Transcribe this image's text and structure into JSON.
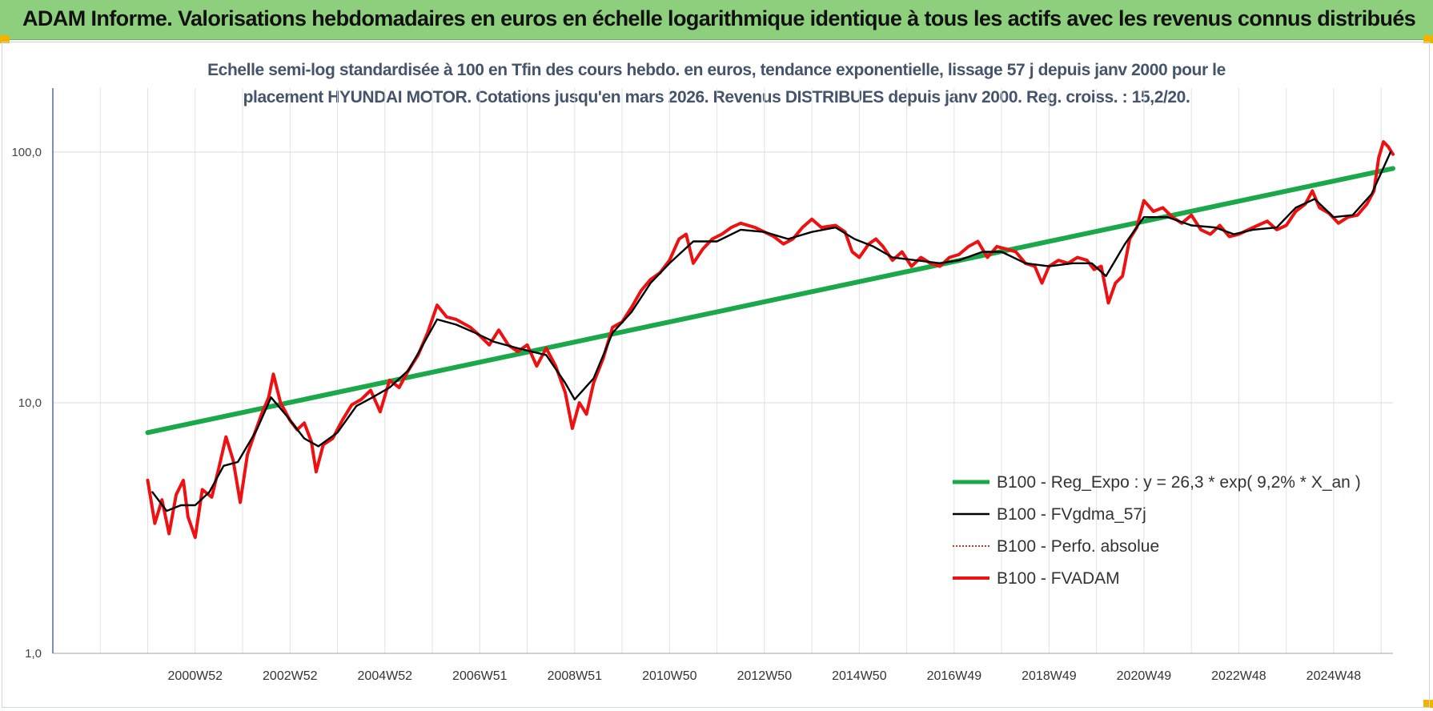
{
  "banner": {
    "title": "ADAM Informe. Valorisations hebdomadaires en euros en échelle logarithmique identique à tous les actifs avec les revenus connus distribués"
  },
  "colors": {
    "banner": "#8dcf7c",
    "regression": "#1aa84a",
    "smoothed": "#000000",
    "absolute": "#c0392b",
    "fvadam": "#ee1111"
  },
  "chart_data": {
    "type": "line",
    "title_line1": "Echelle semi-log standardisée à 100 en Tfin des cours hebdo. en euros, tendance exponentielle, lissage 57 j depuis janv 2000 pour le",
    "title_line2": "placement HYUNDAI MOTOR. Cotations jusqu'en mars 2026. Revenus DISTRIBUES depuis janv 2000. Reg. croiss. : 15,2/20.",
    "y_scale": "log",
    "ylim": [
      1,
      180
    ],
    "xlim": [
      1998.0,
      2026.25
    ],
    "y_ticks": [
      1,
      10,
      100
    ],
    "y_tick_labels": [
      "1,0",
      "10,0",
      "100,0"
    ],
    "x_tick_labels": [
      "2000W52",
      "2002W52",
      "2004W52",
      "2006W51",
      "2008W51",
      "2010W50",
      "2012W50",
      "2014W50",
      "2016W49",
      "2018W49",
      "2020W49",
      "2022W48",
      "2024W48"
    ],
    "x_tick_positions": [
      2001.0,
      2003.0,
      2005.0,
      2007.0,
      2009.0,
      2011.0,
      2013.0,
      2015.0,
      2017.0,
      2019.0,
      2021.0,
      2023.0,
      2025.0
    ],
    "grid": true,
    "legend_position": "bottom-right",
    "series": [
      {
        "name": "B100 - Reg_Expo : y = 26,3 * exp( 9,2% *  X_an )",
        "style": "solid-thick",
        "points": [
          [
            2000.0,
            7.6
          ],
          [
            2026.25,
            86.0
          ]
        ]
      },
      {
        "name": "B100 - FVgdma_57j",
        "style": "solid-thin",
        "points": [
          [
            2000.1,
            4.4
          ],
          [
            2000.4,
            3.7
          ],
          [
            2000.7,
            3.9
          ],
          [
            2001.0,
            3.9
          ],
          [
            2001.3,
            4.4
          ],
          [
            2001.6,
            5.6
          ],
          [
            2001.9,
            5.8
          ],
          [
            2002.3,
            7.8
          ],
          [
            2002.6,
            10.5
          ],
          [
            2002.9,
            9.0
          ],
          [
            2003.3,
            7.2
          ],
          [
            2003.6,
            6.7
          ],
          [
            2004.0,
            7.6
          ],
          [
            2004.4,
            9.7
          ],
          [
            2004.7,
            10.4
          ],
          [
            2005.1,
            11.5
          ],
          [
            2005.5,
            13.5
          ],
          [
            2005.8,
            17.0
          ],
          [
            2006.1,
            21.5
          ],
          [
            2006.5,
            20.5
          ],
          [
            2006.9,
            19.0
          ],
          [
            2007.3,
            17.5
          ],
          [
            2007.8,
            16.5
          ],
          [
            2008.4,
            15.5
          ],
          [
            2008.8,
            12.0
          ],
          [
            2009.0,
            10.3
          ],
          [
            2009.4,
            12.5
          ],
          [
            2009.8,
            19.0
          ],
          [
            2010.2,
            23.0
          ],
          [
            2010.6,
            30.0
          ],
          [
            2011.0,
            36.0
          ],
          [
            2011.5,
            44.0
          ],
          [
            2012.0,
            44.0
          ],
          [
            2012.5,
            49.0
          ],
          [
            2013.0,
            48.0
          ],
          [
            2013.5,
            45.0
          ],
          [
            2014.0,
            48.0
          ],
          [
            2014.5,
            50.0
          ],
          [
            2014.9,
            45.0
          ],
          [
            2015.3,
            42.0
          ],
          [
            2015.7,
            38.0
          ],
          [
            2016.2,
            37.0
          ],
          [
            2016.7,
            36.0
          ],
          [
            2017.1,
            37.0
          ],
          [
            2017.6,
            40.0
          ],
          [
            2018.0,
            40.0
          ],
          [
            2018.5,
            36.0
          ],
          [
            2019.0,
            35.0
          ],
          [
            2019.5,
            36.0
          ],
          [
            2019.9,
            36.0
          ],
          [
            2020.2,
            32.0
          ],
          [
            2020.6,
            43.0
          ],
          [
            2021.0,
            55.0
          ],
          [
            2021.5,
            55.0
          ],
          [
            2022.0,
            51.0
          ],
          [
            2022.5,
            50.0
          ],
          [
            2022.9,
            47.0
          ],
          [
            2023.3,
            49.0
          ],
          [
            2023.8,
            50.0
          ],
          [
            2024.2,
            60.0
          ],
          [
            2024.6,
            65.0
          ],
          [
            2025.0,
            55.0
          ],
          [
            2025.4,
            56.0
          ],
          [
            2025.8,
            68.0
          ],
          [
            2026.2,
            100.0
          ]
        ]
      },
      {
        "name": "B100 - Perfo. absolue",
        "style": "dotted"
      },
      {
        "name": "B100 - FVADAM",
        "style": "solid-thick",
        "points": [
          [
            2000.0,
            4.9
          ],
          [
            2000.15,
            3.3
          ],
          [
            2000.3,
            4.1
          ],
          [
            2000.45,
            3.0
          ],
          [
            2000.6,
            4.3
          ],
          [
            2000.75,
            4.9
          ],
          [
            2000.85,
            3.5
          ],
          [
            2001.0,
            2.9
          ],
          [
            2001.15,
            4.5
          ],
          [
            2001.35,
            4.2
          ],
          [
            2001.5,
            5.5
          ],
          [
            2001.65,
            7.3
          ],
          [
            2001.8,
            5.9
          ],
          [
            2001.95,
            4.0
          ],
          [
            2002.1,
            6.2
          ],
          [
            2002.25,
            7.5
          ],
          [
            2002.4,
            9.0
          ],
          [
            2002.55,
            10.5
          ],
          [
            2002.65,
            13.0
          ],
          [
            2002.8,
            10.0
          ],
          [
            2003.0,
            8.5
          ],
          [
            2003.15,
            7.8
          ],
          [
            2003.3,
            8.3
          ],
          [
            2003.45,
            7.0
          ],
          [
            2003.55,
            5.3
          ],
          [
            2003.7,
            6.8
          ],
          [
            2003.9,
            7.2
          ],
          [
            2004.1,
            8.5
          ],
          [
            2004.3,
            9.8
          ],
          [
            2004.5,
            10.3
          ],
          [
            2004.7,
            11.2
          ],
          [
            2004.9,
            9.2
          ],
          [
            2005.1,
            12.3
          ],
          [
            2005.3,
            11.5
          ],
          [
            2005.5,
            13.5
          ],
          [
            2005.7,
            15.5
          ],
          [
            2005.9,
            19.0
          ],
          [
            2006.1,
            24.5
          ],
          [
            2006.3,
            22.0
          ],
          [
            2006.5,
            21.5
          ],
          [
            2006.8,
            20.0
          ],
          [
            2007.0,
            18.5
          ],
          [
            2007.2,
            17.0
          ],
          [
            2007.4,
            19.5
          ],
          [
            2007.6,
            17.0
          ],
          [
            2007.8,
            16.0
          ],
          [
            2008.0,
            17.0
          ],
          [
            2008.2,
            14.0
          ],
          [
            2008.4,
            16.5
          ],
          [
            2008.6,
            14.0
          ],
          [
            2008.8,
            11.0
          ],
          [
            2008.95,
            7.9
          ],
          [
            2009.1,
            10.0
          ],
          [
            2009.25,
            9.0
          ],
          [
            2009.4,
            12.0
          ],
          [
            2009.6,
            15.0
          ],
          [
            2009.8,
            20.0
          ],
          [
            2010.0,
            21.0
          ],
          [
            2010.2,
            24.0
          ],
          [
            2010.4,
            28.0
          ],
          [
            2010.6,
            31.0
          ],
          [
            2010.8,
            33.0
          ],
          [
            2011.0,
            37.0
          ],
          [
            2011.2,
            45.0
          ],
          [
            2011.35,
            47.0
          ],
          [
            2011.5,
            36.0
          ],
          [
            2011.7,
            41.0
          ],
          [
            2011.9,
            45.0
          ],
          [
            2012.1,
            47.0
          ],
          [
            2012.3,
            50.0
          ],
          [
            2012.5,
            52.0
          ],
          [
            2012.8,
            50.0
          ],
          [
            2013.0,
            48.0
          ],
          [
            2013.2,
            46.0
          ],
          [
            2013.4,
            43.0
          ],
          [
            2013.6,
            45.0
          ],
          [
            2013.8,
            50.0
          ],
          [
            2014.0,
            54.0
          ],
          [
            2014.2,
            50.0
          ],
          [
            2014.5,
            51.0
          ],
          [
            2014.7,
            48.0
          ],
          [
            2014.85,
            40.0
          ],
          [
            2015.0,
            38.0
          ],
          [
            2015.2,
            43.0
          ],
          [
            2015.35,
            45.0
          ],
          [
            2015.5,
            42.0
          ],
          [
            2015.7,
            37.0
          ],
          [
            2015.9,
            40.0
          ],
          [
            2016.1,
            35.0
          ],
          [
            2016.3,
            38.0
          ],
          [
            2016.5,
            36.0
          ],
          [
            2016.7,
            35.0
          ],
          [
            2016.9,
            38.0
          ],
          [
            2017.1,
            39.0
          ],
          [
            2017.3,
            42.0
          ],
          [
            2017.5,
            44.0
          ],
          [
            2017.7,
            38.0
          ],
          [
            2017.9,
            42.0
          ],
          [
            2018.1,
            41.0
          ],
          [
            2018.3,
            40.0
          ],
          [
            2018.5,
            36.0
          ],
          [
            2018.7,
            35.0
          ],
          [
            2018.85,
            30.0
          ],
          [
            2019.0,
            35.0
          ],
          [
            2019.2,
            37.0
          ],
          [
            2019.4,
            36.0
          ],
          [
            2019.6,
            38.0
          ],
          [
            2019.8,
            37.0
          ],
          [
            2019.95,
            34.0
          ],
          [
            2020.1,
            35.0
          ],
          [
            2020.25,
            25.0
          ],
          [
            2020.4,
            30.0
          ],
          [
            2020.55,
            32.0
          ],
          [
            2020.7,
            45.0
          ],
          [
            2020.85,
            50.0
          ],
          [
            2021.0,
            64.0
          ],
          [
            2021.2,
            58.0
          ],
          [
            2021.4,
            60.0
          ],
          [
            2021.6,
            55.0
          ],
          [
            2021.8,
            52.0
          ],
          [
            2022.0,
            56.0
          ],
          [
            2022.2,
            49.0
          ],
          [
            2022.4,
            47.0
          ],
          [
            2022.6,
            51.0
          ],
          [
            2022.8,
            46.0
          ],
          [
            2023.0,
            47.0
          ],
          [
            2023.2,
            49.0
          ],
          [
            2023.4,
            51.0
          ],
          [
            2023.6,
            53.0
          ],
          [
            2023.8,
            49.0
          ],
          [
            2024.0,
            51.0
          ],
          [
            2024.2,
            58.0
          ],
          [
            2024.4,
            62.0
          ],
          [
            2024.55,
            70.0
          ],
          [
            2024.7,
            60.0
          ],
          [
            2024.9,
            57.0
          ],
          [
            2025.1,
            52.0
          ],
          [
            2025.3,
            55.0
          ],
          [
            2025.5,
            56.0
          ],
          [
            2025.7,
            62.0
          ],
          [
            2025.85,
            70.0
          ],
          [
            2025.95,
            95.0
          ],
          [
            2026.05,
            110.0
          ],
          [
            2026.15,
            105.0
          ],
          [
            2026.25,
            98.0
          ]
        ]
      }
    ]
  }
}
